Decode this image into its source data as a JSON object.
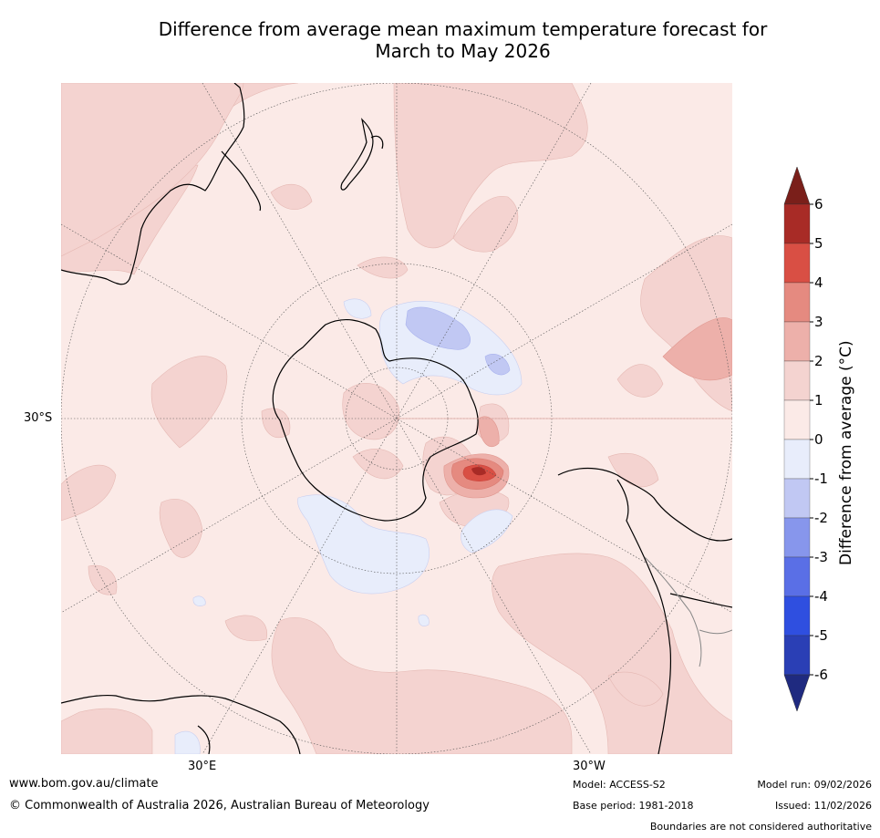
{
  "title": {
    "line1": "Difference from average mean maximum temperature forecast for",
    "line2": "March to May 2026"
  },
  "map": {
    "lat_label": "30°S",
    "lon_label_east": "30°E",
    "lon_label_west": "30°W",
    "colors": {
      "pos_0_1": "#fbeae7",
      "pos_1_2": "#f4d3d0",
      "pos_2_3": "#edb0aa",
      "pos_3_4": "#e58a80",
      "pos_4_5": "#d94f44",
      "pos_5_6": "#a82b26",
      "neg_0_1": "#e8edfb",
      "neg_1_2": "#c1c8f3",
      "coast": "#000000",
      "border": "#888888",
      "grid": "#555555"
    }
  },
  "colorbar": {
    "title": "Difference from average (°C)",
    "ticks": [
      "6",
      "5",
      "4",
      "3",
      "2",
      "1",
      "0",
      "-1",
      "-2",
      "-3",
      "-4",
      "-5",
      "-6"
    ],
    "colors": [
      "#a82b26",
      "#d94f44",
      "#e58a80",
      "#edb0aa",
      "#f4d3d0",
      "#fbeae7",
      "#e8edfb",
      "#c1c8f3",
      "#8796ec",
      "#5a6fe6",
      "#2f4fe0",
      "#2a3fb5"
    ],
    "top_arrow": "#7a1f1a",
    "bottom_arrow": "#1f2a80"
  },
  "footer": {
    "website": "www.bom.gov.au/climate",
    "copyright": "© Commonwealth of Australia 2026, Australian Bureau of Meteorology",
    "model": "Model: ACCESS-S2",
    "base_period": "Base period: 1981-2018",
    "model_run": "Model run: 09/02/2026",
    "issued": "Issued: 11/02/2026",
    "disclaimer": "Boundaries are not considered authoritative"
  }
}
